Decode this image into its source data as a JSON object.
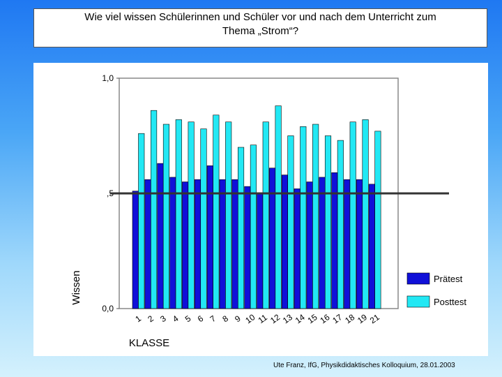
{
  "title": {
    "line1": "Wie viel wissen Schülerinnen und Schüler  vor und nach dem Unterricht zum",
    "line2": "Thema „Strom“?"
  },
  "footer": "Ute Franz, IfG, Physikdidaktisches Kolloquium, 28.01.2003",
  "colors": {
    "pretest": "#1010d8",
    "posttest": "#22e8f4",
    "reference_line": "#333333"
  },
  "chart_data": {
    "type": "bar",
    "xlabel": "KLASSE",
    "ylabel": "Wissen",
    "ylim": [
      0,
      1
    ],
    "yticks": [
      {
        "value": 0,
        "label": "0,0"
      },
      {
        "value": 0.5,
        "label": ",5"
      },
      {
        "value": 1,
        "label": "1,0"
      }
    ],
    "reference_line": 0.5,
    "categories": [
      "1",
      "2",
      "3",
      "4",
      "5",
      "6",
      "7",
      "8",
      "9",
      "10",
      "11",
      "12",
      "13",
      "14",
      "15",
      "16",
      "17",
      "18",
      "19",
      "21"
    ],
    "series": [
      {
        "name": "Prätest",
        "values": [
          0.51,
          0.56,
          0.63,
          0.57,
          0.55,
          0.56,
          0.62,
          0.56,
          0.56,
          0.53,
          0.5,
          0.61,
          0.58,
          0.52,
          0.55,
          0.57,
          0.59,
          0.56,
          0.56,
          0.54
        ]
      },
      {
        "name": "Posttest",
        "values": [
          0.76,
          0.86,
          0.8,
          0.82,
          0.81,
          0.78,
          0.84,
          0.81,
          0.7,
          0.71,
          0.81,
          0.88,
          0.75,
          0.79,
          0.8,
          0.75,
          0.73,
          0.81,
          0.82,
          0.77
        ]
      }
    ],
    "legend": "right"
  }
}
